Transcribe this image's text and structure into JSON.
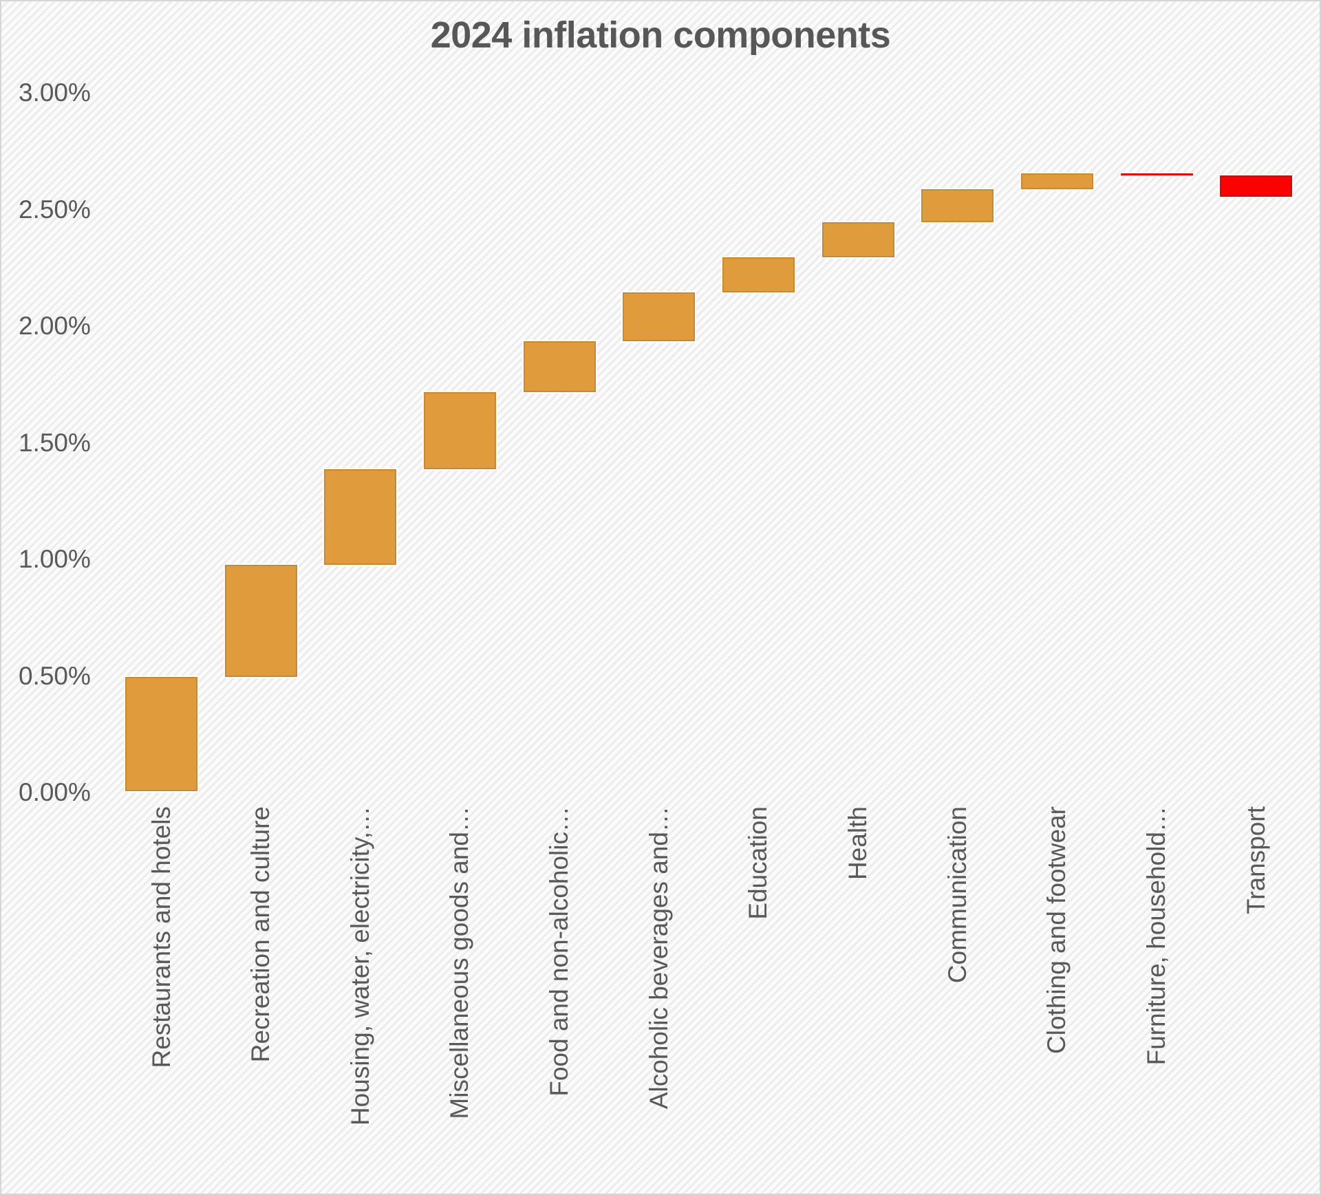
{
  "chart_data": {
    "type": "bar",
    "subtype": "waterfall",
    "title": "2024 inflation components",
    "categories": [
      "Restaurants and hotels",
      "Recreation and culture",
      "Housing, water, electricity,…",
      "Miscellaneous goods and…",
      "Food and non-alcoholic…",
      "Alcoholic beverages and…",
      "Education",
      "Health",
      "Communication",
      "Clothing and footwear",
      "Furniture, household…",
      "Transport"
    ],
    "values": [
      0.49,
      0.48,
      0.41,
      0.33,
      0.22,
      0.21,
      0.15,
      0.15,
      0.14,
      0.07,
      -0.01,
      -0.09
    ],
    "cumulative": [
      0.49,
      0.97,
      1.38,
      1.71,
      1.93,
      2.14,
      2.29,
      2.44,
      2.58,
      2.65,
      2.64,
      2.55
    ],
    "unit": "%",
    "xlabel": "",
    "ylabel": "",
    "ylim": [
      0,
      3
    ],
    "grid": false,
    "legend_position": "none",
    "y_axis": {
      "ticks": [
        {
          "label": "0.00%",
          "value": 0.0
        },
        {
          "label": "0.50%",
          "value": 0.5
        },
        {
          "label": "1.00%",
          "value": 1.0
        },
        {
          "label": "1.50%",
          "value": 1.5
        },
        {
          "label": "2.00%",
          "value": 2.0
        },
        {
          "label": "2.50%",
          "value": 2.5
        },
        {
          "label": "3.00%",
          "value": 3.0
        }
      ]
    },
    "colors": {
      "increase_fill": "#E09B3D",
      "increase_border": "#C98A2F",
      "decrease_fill": "#FF0000",
      "decrease_border": "#E60000",
      "text": "#595959",
      "title_text": "#575757"
    }
  }
}
